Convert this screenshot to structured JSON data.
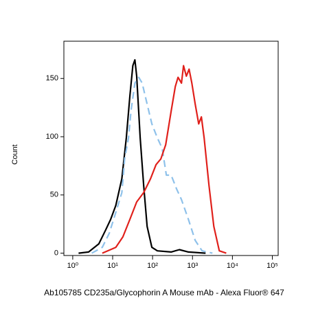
{
  "chart_data": {
    "type": "line",
    "title": "Ab105785 CD235a/Glycophorin A Mouse mAb - Alexa Fluor® 647",
    "y_label": "Count",
    "xscale": "log",
    "xlim": [
      0.6,
      140000
    ],
    "ylim": [
      -2,
      182
    ],
    "xticks": [
      {
        "value": 1,
        "label": "10⁰"
      },
      {
        "value": 10,
        "label": "10¹"
      },
      {
        "value": 100,
        "label": "10²"
      },
      {
        "value": 1000,
        "label": "10³"
      },
      {
        "value": 10000,
        "label": "10⁴"
      },
      {
        "value": 100000,
        "label": "10⁵"
      }
    ],
    "yticks": [
      0,
      50,
      100,
      150
    ],
    "series": [
      {
        "color": "#000000",
        "dash": false,
        "x": [
          1.4,
          2.5,
          4.5,
          6.7,
          8.9,
          12,
          17,
          22,
          27,
          32,
          36,
          40,
          49,
          60,
          73,
          96,
          132,
          292,
          470,
          790,
          2130
        ],
        "values": [
          0,
          1,
          8,
          20,
          29,
          41,
          64,
          99,
          135,
          161,
          166,
          152,
          99,
          58,
          23,
          5,
          2,
          1,
          3,
          1,
          0
        ]
      },
      {
        "color": "#8ec1ea",
        "dash": true,
        "x": [
          3.0,
          5.5,
          8.2,
          12,
          17,
          20,
          25,
          29,
          36,
          45,
          55,
          73,
          96,
          132,
          174,
          221,
          292,
          401,
          530,
          790,
          1170,
          1740,
          3160
        ],
        "values": [
          0,
          5,
          17,
          35,
          52,
          81,
          99,
          123,
          146,
          151,
          146,
          128,
          111,
          99,
          90,
          67,
          67,
          55,
          46,
          29,
          11,
          2,
          0
        ]
      },
      {
        "color": "#e0201b",
        "dash": false,
        "x": [
          5.5,
          12,
          18,
          27,
          40,
          60,
          89,
          122,
          161,
          213,
          292,
          371,
          434,
          530,
          597,
          700,
          820,
          961,
          1170,
          1430,
          1670,
          1960,
          2590,
          3420,
          4700,
          7000
        ],
        "values": [
          0,
          5,
          14,
          29,
          44,
          52,
          64,
          76,
          81,
          93,
          122,
          143,
          151,
          146,
          161,
          152,
          158,
          146,
          128,
          111,
          117,
          99,
          58,
          23,
          2,
          0
        ]
      }
    ]
  }
}
